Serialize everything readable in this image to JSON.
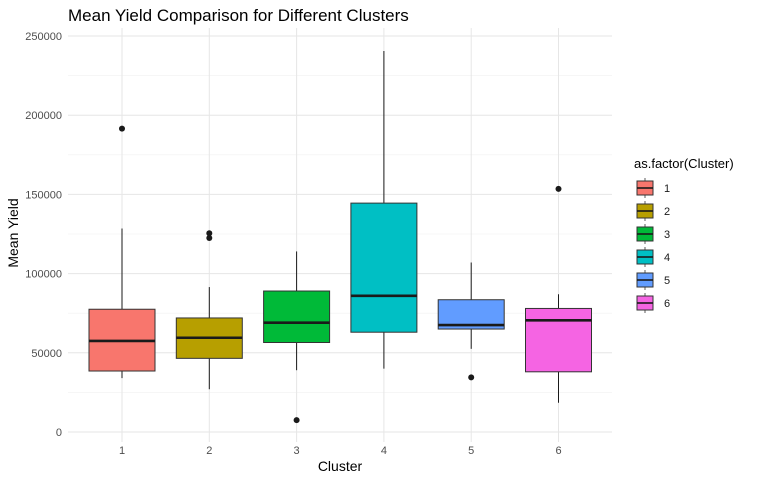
{
  "chart_data": {
    "type": "boxplot",
    "title": "Mean Yield Comparison for Different Clusters",
    "xlabel": "Cluster",
    "ylabel": "Mean Yield",
    "categories": [
      "1",
      "2",
      "3",
      "4",
      "5",
      "6"
    ],
    "ylim": [
      0,
      250000
    ],
    "yticks": [
      0,
      50000,
      100000,
      150000,
      200000,
      250000
    ],
    "ytick_labels": [
      "0",
      "50000",
      "100000",
      "150000",
      "200000",
      "250000"
    ],
    "grid": true,
    "legend": {
      "title": "as.factor(Cluster)",
      "position": "right",
      "entries": [
        "1",
        "2",
        "3",
        "4",
        "5",
        "6"
      ]
    },
    "series": [
      {
        "category": "1",
        "color": "#F8766D",
        "whisker_low": 34000,
        "q1": 38500,
        "median": 57500,
        "q3": 77500,
        "whisker_high": 128500,
        "outliers": [
          191500
        ]
      },
      {
        "category": "2",
        "color": "#B79F00",
        "whisker_low": 27000,
        "q1": 46500,
        "median": 59500,
        "q3": 72000,
        "whisker_high": 91500,
        "outliers": [
          122500,
          125500
        ]
      },
      {
        "category": "3",
        "color": "#00BA38",
        "whisker_low": 39000,
        "q1": 56500,
        "median": 69000,
        "q3": 89000,
        "whisker_high": 114000,
        "outliers": [
          7500
        ]
      },
      {
        "category": "4",
        "color": "#00BFC4",
        "whisker_low": 40000,
        "q1": 63000,
        "median": 86000,
        "q3": 144500,
        "whisker_high": 240500,
        "outliers": []
      },
      {
        "category": "5",
        "color": "#619CFF",
        "whisker_low": 52500,
        "q1": 65000,
        "median": 67500,
        "q3": 83500,
        "whisker_high": 107000,
        "outliers": [
          34500
        ]
      },
      {
        "category": "6",
        "color": "#F564E3",
        "whisker_low": 18500,
        "q1": 38000,
        "median": 70500,
        "q3": 78000,
        "whisker_high": 87000,
        "outliers": [
          153500
        ]
      }
    ]
  }
}
